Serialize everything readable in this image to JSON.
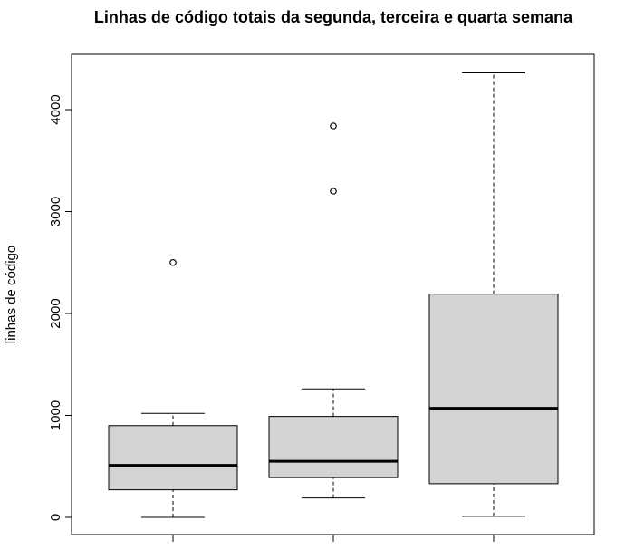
{
  "chart_data": {
    "type": "boxplot",
    "title": "Linhas de código totais da segunda, terceira e quarta semana",
    "xlabel": "",
    "ylabel": "linhas de código",
    "ylim": [
      0,
      4400
    ],
    "yticks": [
      0,
      1000,
      2000,
      3000,
      4000
    ],
    "ytick_labels": [
      "0",
      "1000",
      "2000",
      "3000",
      "4000"
    ],
    "categories": [
      "",
      "",
      ""
    ],
    "grid": false,
    "legend": "none",
    "box_fill": "#d3d3d3",
    "line_color": "#000000",
    "boxes": [
      {
        "whisker_low": 0,
        "q1": 270,
        "median": 510,
        "q3": 900,
        "whisker_high": 1020,
        "outliers": [
          2500
        ]
      },
      {
        "whisker_low": 190,
        "q1": 390,
        "median": 550,
        "q3": 990,
        "whisker_high": 1260,
        "outliers": [
          3200,
          3840
        ]
      },
      {
        "whisker_low": 10,
        "q1": 330,
        "median": 1070,
        "q3": 2190,
        "whisker_high": 4360,
        "outliers": []
      }
    ]
  }
}
